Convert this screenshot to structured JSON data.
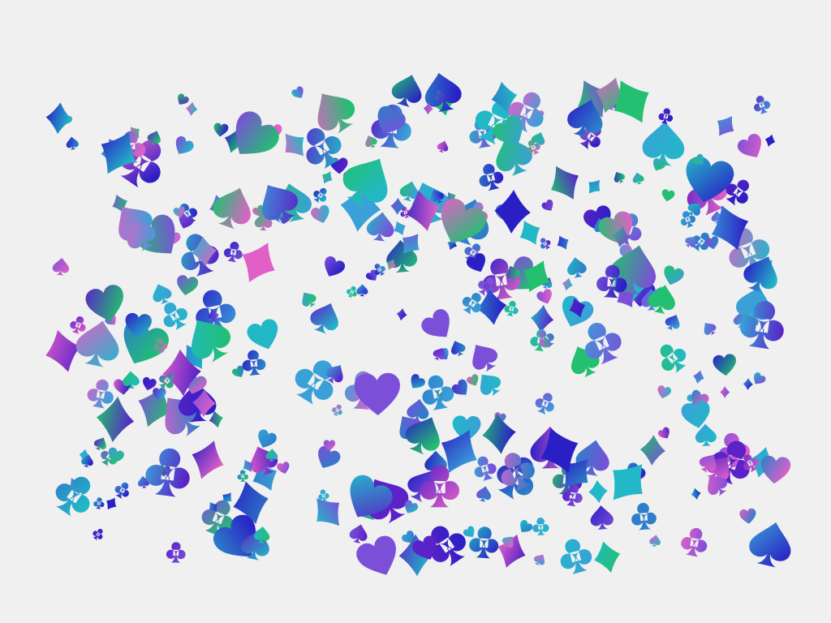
{
  "background": "#f0f0f0",
  "suits": [
    {
      "name": "spade",
      "glyph": "♠"
    },
    {
      "name": "club",
      "glyph": "♣"
    },
    {
      "name": "heart",
      "glyph": "♥"
    },
    {
      "name": "diamond",
      "glyph": "♦"
    }
  ],
  "palette": [
    "#2a1fc4",
    "#5a22c8",
    "#7b4fd8",
    "#e060c8",
    "#2c7fc8",
    "#22b8c8",
    "#22c070",
    "#3aa0d8"
  ]
}
